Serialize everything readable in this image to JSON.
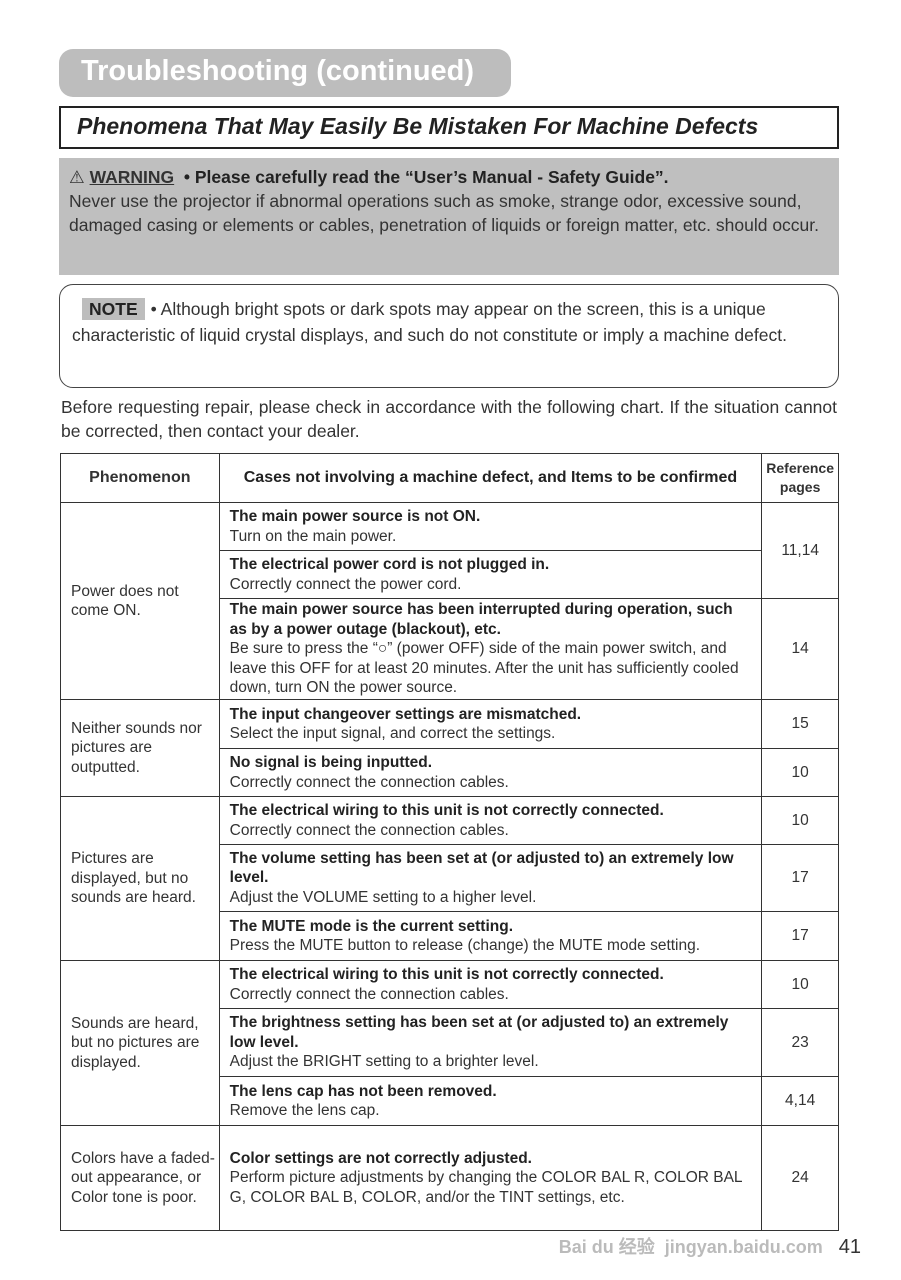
{
  "title": "Troubleshooting (continued)",
  "subtitle": "Phenomena That May Easily Be Mistaken For Machine Defects",
  "warning": {
    "label": "WARNING",
    "icon": "warning-triangle-icon",
    "lead": "• Please carefully read the “User’s Manual - Safety Guide”.",
    "text": "Never use the projector if abnormal operations such as smoke, strange odor, excessive sound, damaged casing or elements or cables, penetration of liquids or foreign matter, etc. should occur."
  },
  "note": {
    "label": "NOTE",
    "text": "• Although bright spots or dark spots may appear on the screen, this is a unique characteristic of liquid crystal displays, and such do not constitute or imply a machine defect."
  },
  "intro": "Before requesting repair, please check in accordance with the following chart. If the situation cannot be corrected, then contact your dealer.",
  "table": {
    "headers": [
      "Phenomenon",
      "Cases not involving a machine defect, and Items to be confirmed",
      "Reference pages"
    ],
    "groups": [
      {
        "phenomenon": "Power does not come ON.",
        "cases": [
          {
            "title": "The main power source is not ON.",
            "text": "Turn on the main power.",
            "ref": "11,14"
          },
          {
            "title": "The electrical power cord is not plugged in.",
            "text": "Correctly connect the power cord."
          },
          {
            "title": "The main power source has been interrupted during operation, such as by a power outage (blackout), etc.",
            "text": "Be sure to press the “○” (power OFF) side of the main power switch, and leave this OFF for at least 20 minutes. After the unit has sufficiently cooled down, turn ON the power source.",
            "ref": "14"
          }
        ]
      },
      {
        "phenomenon": "Neither sounds nor pictures are outputted.",
        "cases": [
          {
            "title": "The input changeover settings are mismatched.",
            "text": "Select the input signal, and correct the settings.",
            "ref": "15"
          },
          {
            "title": "No signal is being inputted.",
            "text": "Correctly connect the connection cables.",
            "ref": "10"
          }
        ]
      },
      {
        "phenomenon": "Pictures are displayed, but no sounds are heard.",
        "cases": [
          {
            "title": "The electrical wiring to this unit is not correctly connected.",
            "text": "Correctly connect the connection cables.",
            "ref": "10"
          },
          {
            "title": "The volume setting has been set at (or adjusted to) an extremely low level.",
            "text": "Adjust the VOLUME setting to a higher level.",
            "ref": "17"
          },
          {
            "title": "The MUTE mode is the current setting.",
            "text": "Press the MUTE button to release (change) the MUTE mode setting.",
            "ref": "17"
          }
        ]
      },
      {
        "phenomenon": "Sounds are heard, but no pictures are displayed.",
        "cases": [
          {
            "title": "The electrical wiring to this unit is not correctly connected.",
            "text": "Correctly connect the connection cables.",
            "ref": "10"
          },
          {
            "title": "The brightness setting has been set at (or adjusted to) an extremely low level.",
            "text": "Adjust the BRIGHT setting to a brighter level.",
            "ref": "23"
          },
          {
            "title": "The lens cap has not been removed.",
            "text": "Remove the lens cap.",
            "ref": "4,14"
          }
        ]
      },
      {
        "phenomenon": "Colors have a faded- out appearance, or Color tone is poor.",
        "cases": [
          {
            "title": "Color settings are not correctly adjusted.",
            "text": "Perform picture adjustments by changing the COLOR BAL R, COLOR BAL G, COLOR BAL B, COLOR, and/or the TINT settings, etc.",
            "ref": "24"
          }
        ]
      }
    ]
  },
  "page_number": "41",
  "watermark": {
    "logo": "Bai du 经验",
    "url": "jingyan.baidu.com"
  }
}
